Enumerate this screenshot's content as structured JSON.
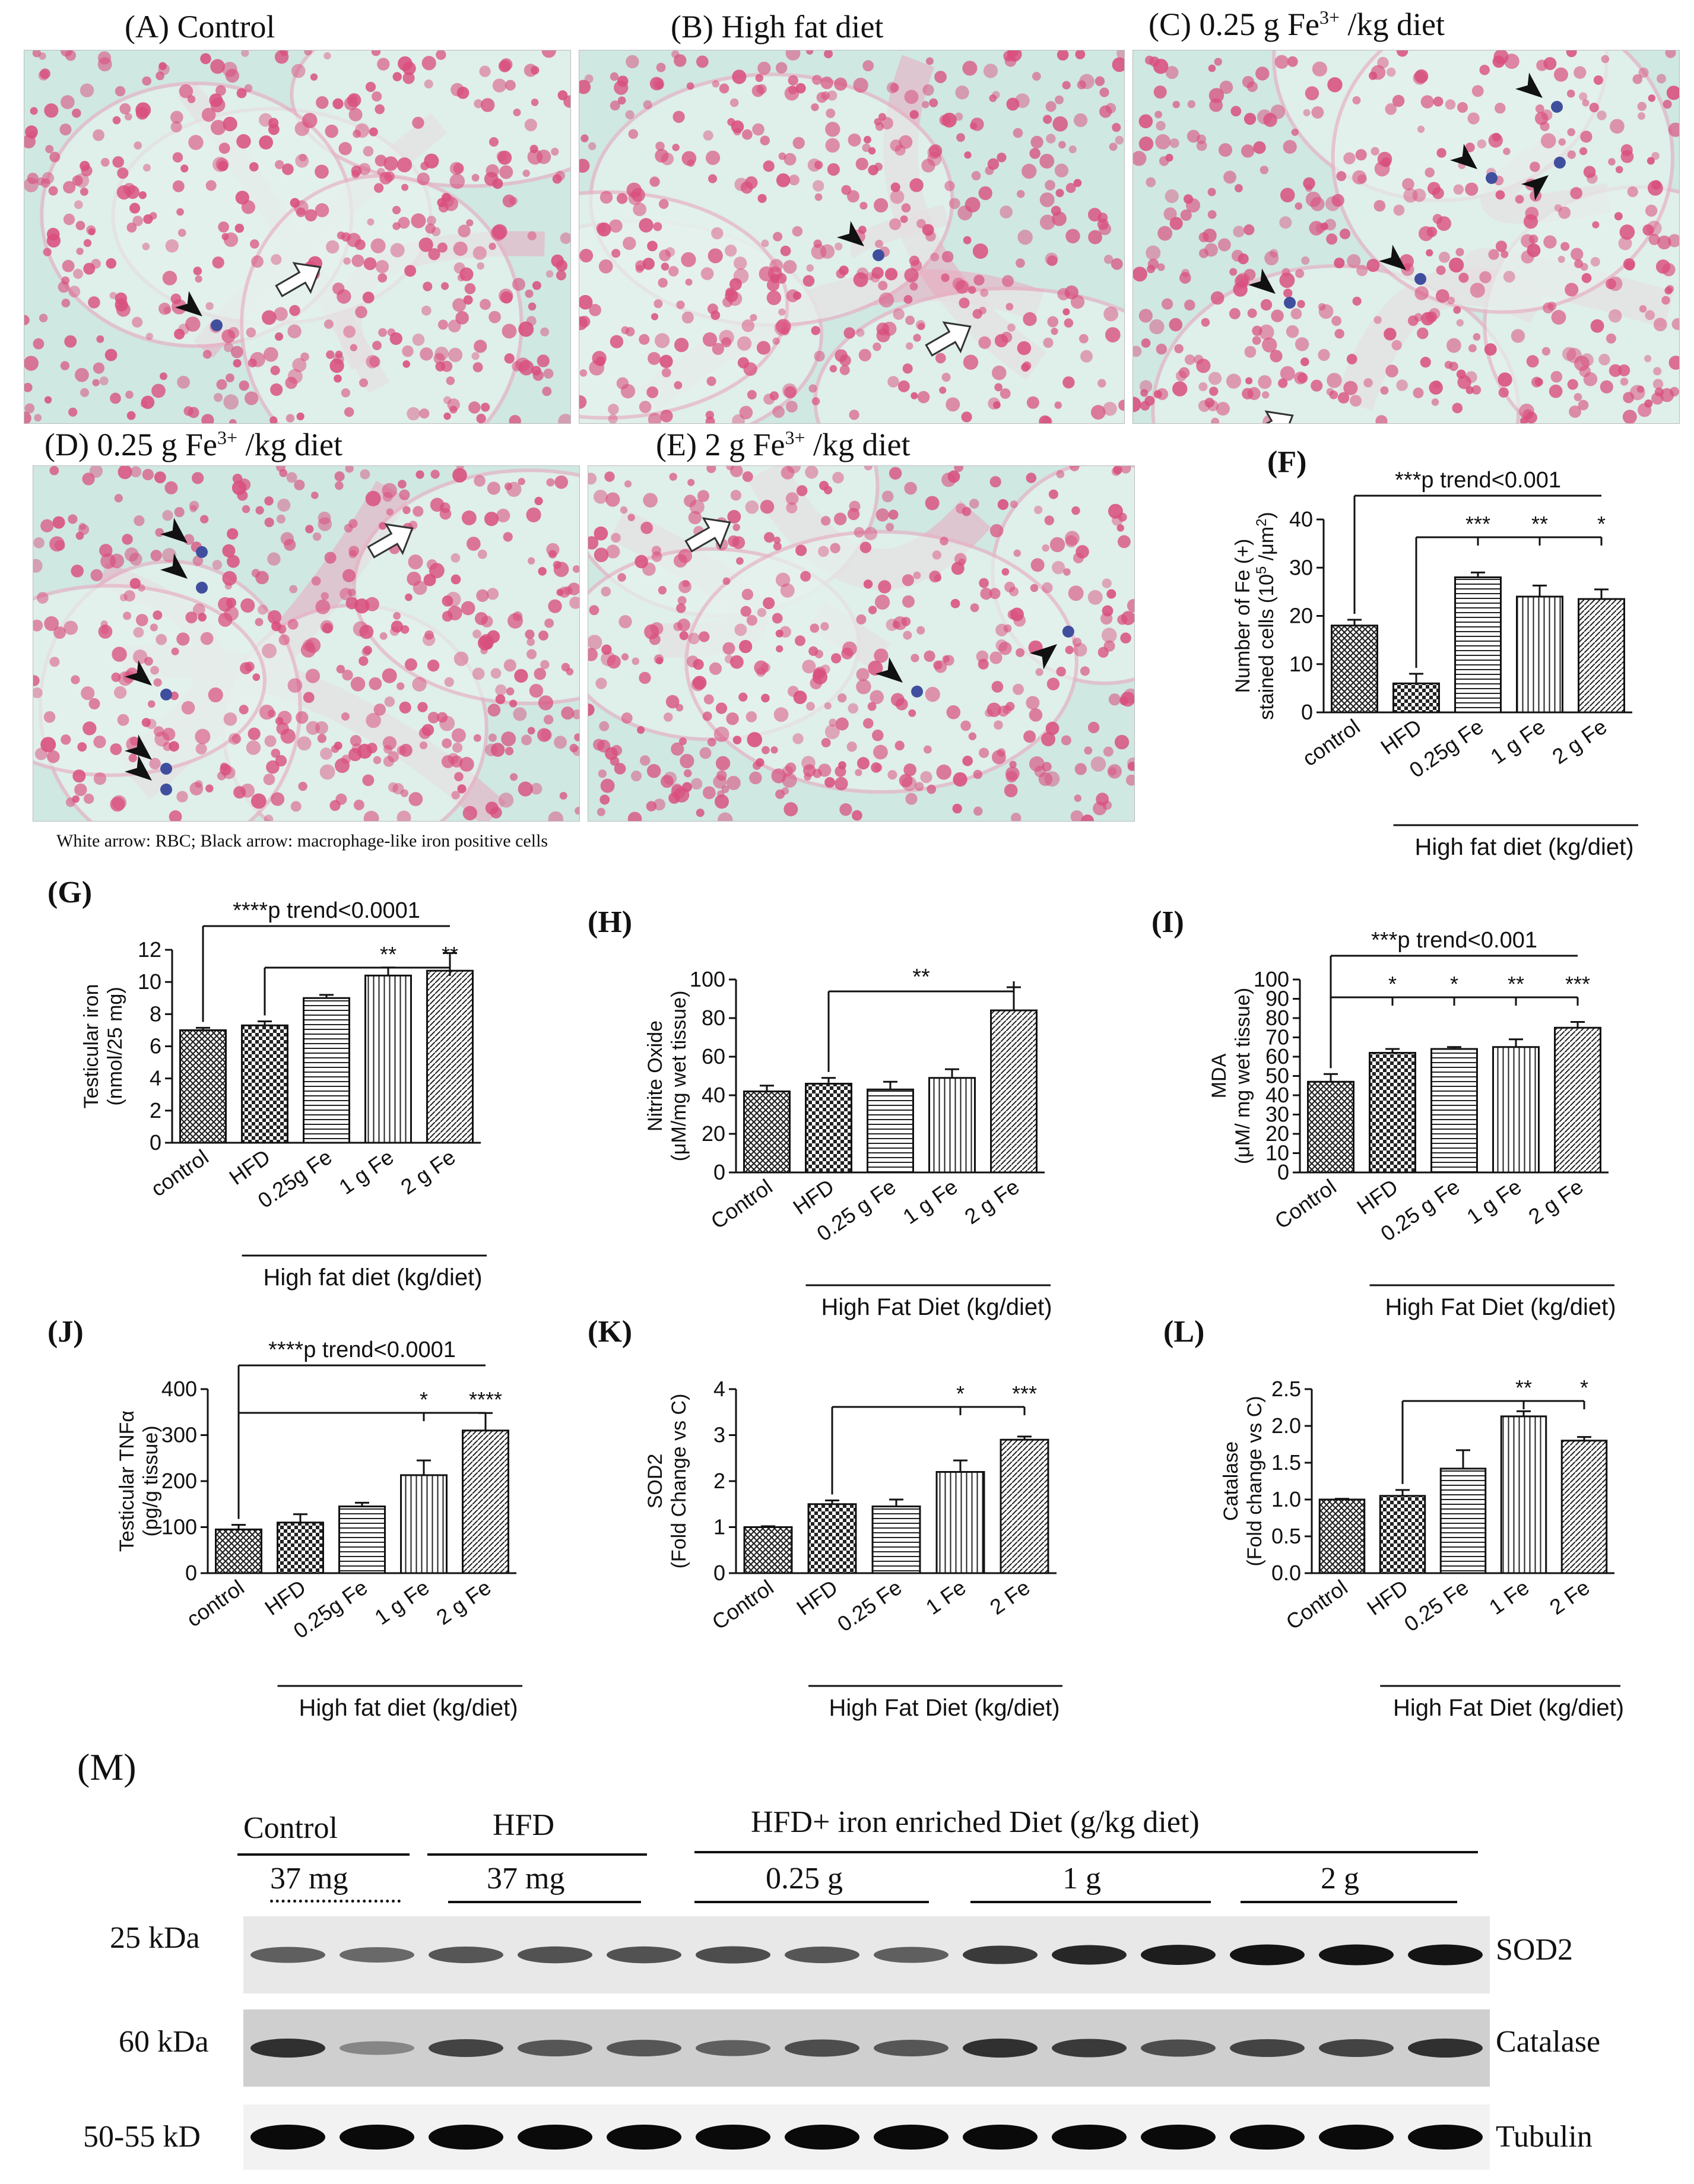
{
  "histology": {
    "panels": [
      {
        "id": "A",
        "title": "(A) Control",
        "tint": "#d8ecea"
      },
      {
        "id": "B",
        "title": "(B) High fat diet",
        "tint": "#e3e9e3"
      },
      {
        "id": "C",
        "title_pre": "(C) 0.25 g Fe",
        "title_sup": "3+",
        "title_post": " /kg diet",
        "tint": "#d5ebe6"
      },
      {
        "id": "D",
        "title_pre": "(D) 0.25 g Fe",
        "title_sup": "3+",
        "title_post": " /kg diet",
        "tint": "#d4e9e5"
      },
      {
        "id": "E",
        "title_pre": "(E) 2 g Fe",
        "title_sup": "3+",
        "title_post": " /kg diet",
        "tint": "#dcebe5"
      }
    ],
    "legend": "White arrow: RBC; Black arrow: macrophage-like iron positive  cells",
    "stain_pink": "#d94f7e",
    "stain_blue": "#3f4f9e",
    "background": "#cfe8e2"
  },
  "chart_data": [
    {
      "id": "F",
      "letter": "(F)",
      "type": "bar",
      "categories": [
        "control",
        "HFD",
        "0.25g Fe",
        "1 g Fe",
        "2 g Fe"
      ],
      "values": [
        18,
        6,
        28,
        24,
        23.5
      ],
      "errors": [
        1.2,
        2,
        1,
        2.3,
        2
      ],
      "ylim": [
        0,
        40
      ],
      "yticks": [
        0,
        10,
        20,
        30,
        40
      ],
      "ylabel_line1": "Number of Fe (+)",
      "ylabel_line2_pre": "stained cells  (10",
      "ylabel_sup": "5",
      "ylabel_line2_post": " /μm",
      "ylabel_sup2": "2",
      "ylabel_close": ")",
      "group_label": "High fat diet (kg/diet)",
      "trend_label": "***p trend<0.001",
      "stars": [
        "",
        "",
        "***",
        "**",
        "*"
      ]
    },
    {
      "id": "G",
      "letter": "(G)",
      "type": "bar",
      "categories": [
        "control",
        "HFD",
        "0.25g Fe",
        "1 g Fe",
        "2 g Fe"
      ],
      "values": [
        7,
        7.3,
        9,
        10.4,
        10.7
      ],
      "errors": [
        0.15,
        0.25,
        0.2,
        0.5,
        1.1
      ],
      "ylim": [
        0,
        12
      ],
      "yticks": [
        0,
        2,
        4,
        6,
        8,
        10,
        12
      ],
      "ylabel_line1": "Testicular iron",
      "ylabel_line2": "(nmol/25 mg)",
      "group_label": "High fat diet (kg/diet)",
      "trend_label": "****p trend<0.0001",
      "stars": [
        "",
        "",
        "",
        "**",
        "**"
      ]
    },
    {
      "id": "H",
      "letter": "(H)",
      "type": "bar",
      "categories": [
        "Control",
        "HFD",
        "0.25 g Fe",
        "1 g Fe",
        "2 g Fe"
      ],
      "values": [
        42,
        46,
        43,
        49,
        84
      ],
      "errors": [
        3,
        3,
        4,
        4.5,
        12
      ],
      "ylim": [
        0,
        100
      ],
      "yticks": [
        0,
        20,
        40,
        60,
        80,
        100
      ],
      "ylabel_line1": "Nitrite Oxide",
      "ylabel_line2": "(μM/mg wet tissue)",
      "group_label": "High Fat Diet (kg/diet)",
      "stars": [
        "",
        "",
        "",
        "",
        ""
      ],
      "bracket_label": "**"
    },
    {
      "id": "I",
      "letter": "(I)",
      "type": "bar",
      "categories": [
        "Control",
        "HFD",
        "0.25 g Fe",
        "1 g Fe",
        "2 g Fe"
      ],
      "values": [
        47,
        62,
        64,
        65,
        75
      ],
      "errors": [
        4,
        2,
        1,
        4,
        3
      ],
      "ylim": [
        0,
        100
      ],
      "yticks": [
        0,
        10,
        20,
        30,
        40,
        50,
        60,
        70,
        80,
        90,
        100
      ],
      "ylabel_line1": "MDA",
      "ylabel_line2": "(μM/ mg wet tissue)",
      "group_label": "High Fat Diet (kg/diet)",
      "trend_label": "***p trend<0.001",
      "stars": [
        "",
        "*",
        "*",
        "**",
        "***"
      ]
    },
    {
      "id": "J",
      "letter": "(J)",
      "type": "bar",
      "categories": [
        "control",
        "HFD",
        "0.25g Fe",
        "1 g Fe",
        "2 g Fe"
      ],
      "values": [
        95,
        110,
        145,
        213,
        310
      ],
      "errors": [
        10,
        18,
        8,
        32,
        38
      ],
      "ylim": [
        0,
        400
      ],
      "yticks": [
        0,
        100,
        200,
        300,
        400
      ],
      "ylabel_line1": "Testicular TNFα",
      "ylabel_line2": "(pg/g tissue)",
      "group_label": "High fat diet (kg/diet)",
      "trend_label": "****p trend<0.0001",
      "stars": [
        "",
        "",
        "",
        "*",
        "****"
      ]
    },
    {
      "id": "K",
      "letter": "(K)",
      "type": "bar",
      "categories": [
        "Control",
        "HFD",
        "0.25 Fe",
        "1 Fe",
        "2 Fe"
      ],
      "values": [
        1,
        1.5,
        1.45,
        2.2,
        2.9
      ],
      "errors": [
        0.02,
        0.08,
        0.15,
        0.25,
        0.07
      ],
      "ylim": [
        0,
        4
      ],
      "yticks": [
        0,
        1,
        2,
        3,
        4
      ],
      "ylabel_line1": "SOD2",
      "ylabel_line2": "(Fold Change vs C)",
      "group_label": "High Fat Diet (kg/diet)",
      "stars": [
        "",
        "",
        "",
        "*",
        "***"
      ]
    },
    {
      "id": "L",
      "letter": "(L)",
      "type": "bar",
      "categories": [
        "Control",
        "HFD",
        "0.25 Fe",
        "1 Fe",
        "2 Fe"
      ],
      "values": [
        1,
        1.05,
        1.42,
        2.13,
        1.8
      ],
      "errors": [
        0.01,
        0.08,
        0.25,
        0.07,
        0.05
      ],
      "ylim": [
        0,
        2.5
      ],
      "yticks": [
        0.0,
        0.5,
        1.0,
        1.5,
        2.0,
        2.5
      ],
      "ytick_labels": [
        "0.0",
        "0.5",
        "1.0",
        "1.5",
        "2.0",
        "2.5"
      ],
      "ylabel_line1": "Catalase",
      "ylabel_line2": "(Fold change vs C)",
      "group_label": "High Fat Diet (kg/diet)",
      "stars": [
        "",
        "",
        "",
        "**",
        "*"
      ]
    }
  ],
  "western": {
    "letter": "(M)",
    "group_headers": [
      "Control",
      "HFD",
      "HFD+ iron enriched Diet (g/kg  diet)"
    ],
    "dose_labels": [
      "37 mg",
      "37 mg",
      "0.25 g",
      "1 g",
      "2 g"
    ],
    "kda_labels": [
      "25 kDa",
      "60 kDa",
      "50-55 kD"
    ],
    "protein_labels": [
      "SOD2",
      "Catalase",
      "Tubulin"
    ],
    "band_intensity": {
      "SOD2": [
        0.55,
        0.5,
        0.6,
        0.62,
        0.62,
        0.65,
        0.6,
        0.55,
        0.75,
        0.85,
        0.9,
        0.95,
        0.95,
        0.95
      ],
      "Catalase": [
        0.8,
        0.35,
        0.7,
        0.6,
        0.6,
        0.55,
        0.65,
        0.6,
        0.8,
        0.75,
        0.65,
        0.7,
        0.7,
        0.8
      ],
      "Tubulin": [
        1,
        1,
        1,
        1,
        1,
        1,
        1,
        1,
        1,
        1,
        1,
        1,
        1,
        1
      ]
    }
  }
}
